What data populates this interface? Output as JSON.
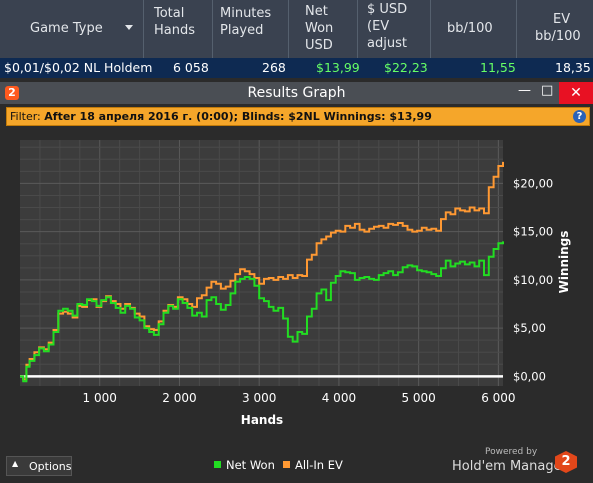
{
  "table": {
    "headers": {
      "game_type": "Game Type",
      "total_hands": [
        "Total",
        "Hands"
      ],
      "minutes": [
        "Minutes",
        "Played"
      ],
      "net_won": [
        "Net",
        "Won",
        "USD"
      ],
      "ev_usd": [
        "$ USD",
        "(EV",
        "adjust"
      ],
      "bb100": "bb/100",
      "ev_bb100": [
        "EV",
        "bb/100"
      ]
    },
    "row": {
      "game": "$0,01/$0,02 NL Holdem",
      "hands": "6 058",
      "minutes": "268",
      "net_won": "$13,99",
      "ev_usd": "$22,23",
      "bb100": "11,55",
      "ev_bb100": "18,35"
    }
  },
  "window": {
    "title": "Results Graph",
    "logo": "2",
    "minimize": "—",
    "maximize": "□",
    "close": "✕"
  },
  "filter": {
    "label": "Filter:",
    "text": "After 18 апреля 2016 г. (0:00); Blinds: $2NL  Winnings: $13,99",
    "help": "?"
  },
  "chart_data": {
    "type": "line",
    "xlabel": "Hands",
    "ylabel": "Winnings",
    "x_ticks": [
      "1 000",
      "2 000",
      "3 000",
      "4 000",
      "5 000",
      "6 000"
    ],
    "y_ticks": [
      "$0,00",
      "$5,00",
      "$10,00",
      "$15,00",
      "$20,00"
    ],
    "xlim": [
      0,
      6058
    ],
    "ylim": [
      -1.0,
      24.5
    ],
    "grid": true,
    "legend_position": "bottom-center",
    "series": [
      {
        "name": "Net Won",
        "color": "#22dd22",
        "x": [
          0,
          40,
          80,
          120,
          180,
          240,
          300,
          360,
          420,
          480,
          540,
          600,
          660,
          720,
          780,
          840,
          900,
          960,
          1020,
          1080,
          1140,
          1200,
          1260,
          1320,
          1380,
          1440,
          1500,
          1560,
          1620,
          1680,
          1740,
          1800,
          1860,
          1920,
          1980,
          2040,
          2100,
          2160,
          2220,
          2280,
          2340,
          2400,
          2460,
          2520,
          2580,
          2640,
          2700,
          2760,
          2820,
          2880,
          2940,
          3000,
          3060,
          3120,
          3180,
          3240,
          3300,
          3360,
          3420,
          3480,
          3540,
          3600,
          3660,
          3720,
          3780,
          3840,
          3900,
          3960,
          4020,
          4080,
          4140,
          4200,
          4260,
          4320,
          4380,
          4440,
          4500,
          4560,
          4620,
          4680,
          4740,
          4800,
          4860,
          4920,
          4980,
          5040,
          5100,
          5160,
          5220,
          5280,
          5340,
          5400,
          5460,
          5520,
          5580,
          5640,
          5700,
          5760,
          5820,
          5880,
          5940,
          6000,
          6058
        ],
        "y": [
          0,
          -0.5,
          1.0,
          1.6,
          2.2,
          2.9,
          2.6,
          3.3,
          4.6,
          6.8,
          7.0,
          6.8,
          6.3,
          7.5,
          7.4,
          8.0,
          7.8,
          7.3,
          7.9,
          8.2,
          7.6,
          7.1,
          6.6,
          7.3,
          7.0,
          6.1,
          5.8,
          5.0,
          4.6,
          4.3,
          5.4,
          6.6,
          7.3,
          7.0,
          8.0,
          7.6,
          7.1,
          6.3,
          6.6,
          6.2,
          7.9,
          8.2,
          7.5,
          6.9,
          7.4,
          8.6,
          9.8,
          10.1,
          10.3,
          10.1,
          9.4,
          8.1,
          7.8,
          7.2,
          6.8,
          7.1,
          6.0,
          4.1,
          3.6,
          4.6,
          4.4,
          6.2,
          7.0,
          8.6,
          9.0,
          7.9,
          9.7,
          10.4,
          10.9,
          10.8,
          10.7,
          10.0,
          10.2,
          10.3,
          10.1,
          10.0,
          10.5,
          10.7,
          10.9,
          10.5,
          10.8,
          11.3,
          11.5,
          11.4,
          11.0,
          10.9,
          10.8,
          10.6,
          10.4,
          11.2,
          12.0,
          11.4,
          11.7,
          11.9,
          11.6,
          11.8,
          11.4,
          12.0,
          10.5,
          12.4,
          13.2,
          13.8,
          13.99
        ]
      },
      {
        "name": "All-In EV",
        "color": "#ff9933",
        "x": [
          0,
          40,
          80,
          120,
          180,
          240,
          300,
          360,
          420,
          480,
          540,
          600,
          660,
          720,
          780,
          840,
          900,
          960,
          1020,
          1080,
          1140,
          1200,
          1260,
          1320,
          1380,
          1440,
          1500,
          1560,
          1620,
          1680,
          1740,
          1800,
          1860,
          1920,
          1980,
          2040,
          2100,
          2160,
          2220,
          2280,
          2340,
          2400,
          2460,
          2520,
          2580,
          2640,
          2700,
          2760,
          2820,
          2880,
          2940,
          3000,
          3060,
          3120,
          3180,
          3240,
          3300,
          3360,
          3420,
          3480,
          3540,
          3600,
          3660,
          3720,
          3780,
          3840,
          3900,
          3960,
          4020,
          4080,
          4140,
          4200,
          4260,
          4320,
          4380,
          4440,
          4500,
          4560,
          4620,
          4680,
          4740,
          4800,
          4860,
          4920,
          4980,
          5040,
          5100,
          5160,
          5220,
          5280,
          5340,
          5400,
          5460,
          5520,
          5580,
          5640,
          5700,
          5760,
          5820,
          5880,
          5940,
          6000,
          6058
        ],
        "y": [
          0,
          -0.3,
          1.2,
          1.8,
          2.5,
          3.0,
          2.8,
          3.5,
          4.8,
          6.5,
          6.7,
          6.5,
          6.1,
          7.3,
          7.2,
          7.9,
          8.0,
          7.2,
          7.8,
          8.3,
          7.8,
          7.5,
          7.0,
          7.5,
          7.1,
          6.5,
          6.2,
          5.2,
          4.9,
          4.8,
          5.7,
          6.8,
          7.4,
          7.2,
          8.2,
          8.0,
          7.5,
          7.2,
          8.1,
          8.4,
          9.2,
          9.8,
          9.6,
          9.1,
          9.3,
          9.9,
          10.6,
          11.1,
          10.9,
          10.6,
          10.2,
          9.6,
          10.1,
          10.2,
          10.0,
          10.3,
          10.1,
          10.5,
          10.2,
          10.5,
          10.4,
          12.1,
          12.6,
          13.8,
          14.2,
          14.5,
          14.9,
          15.1,
          15.0,
          15.6,
          15.4,
          15.8,
          15.2,
          15.0,
          15.3,
          15.5,
          15.6,
          15.4,
          15.8,
          15.7,
          15.9,
          15.6,
          15.2,
          15.0,
          15.1,
          15.4,
          15.2,
          15.3,
          15.1,
          16.3,
          17.0,
          16.8,
          17.4,
          17.2,
          17.1,
          17.5,
          17.2,
          17.4,
          16.9,
          19.6,
          20.7,
          21.8,
          22.23
        ]
      }
    ]
  },
  "bottom": {
    "options_arrow": "▲",
    "options_label": "Options",
    "powered_by": "Powered by",
    "brand": "Hold'em Manager",
    "brand_logo": "2"
  }
}
